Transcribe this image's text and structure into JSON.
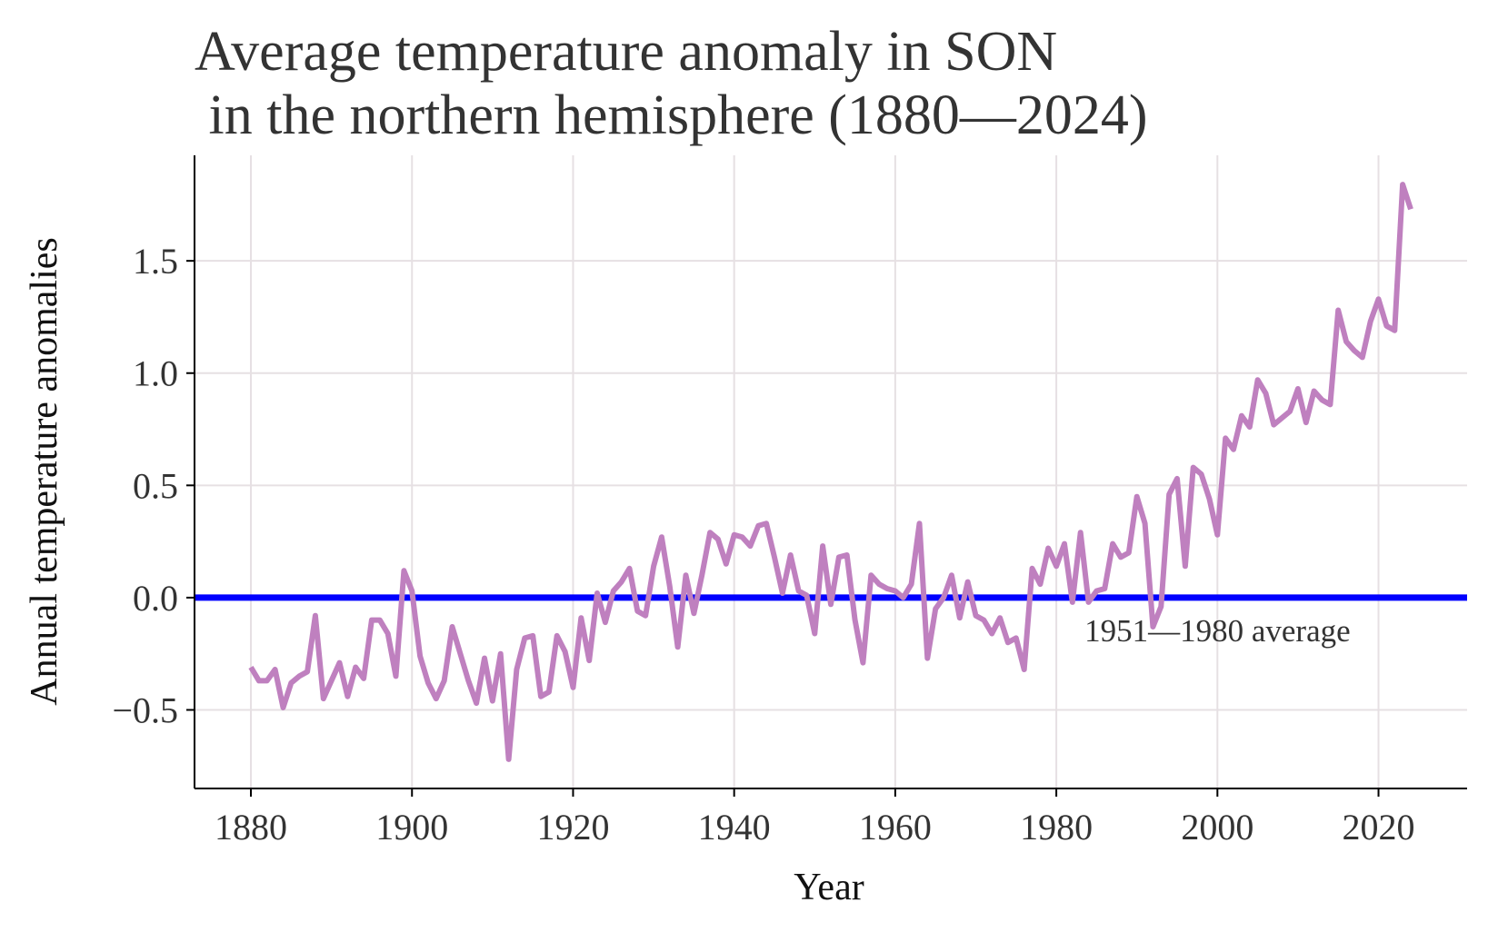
{
  "chart_data": {
    "type": "line",
    "title_line1": "Average temperature anomaly in SON",
    "title_line2": " in the northern hemisphere (1880—2024)",
    "xlabel": "Year",
    "ylabel": "Annual temperature anomalies",
    "xlim": [
      1873,
      2031
    ],
    "ylim": [
      -0.85,
      1.97
    ],
    "xticks": [
      1880,
      1900,
      1920,
      1940,
      1960,
      1980,
      2000,
      2020
    ],
    "xtick_labels": [
      "1880",
      "1900",
      "1920",
      "1940",
      "1960",
      "1980",
      "2000",
      "2020"
    ],
    "yticks": [
      -0.5,
      0.0,
      0.5,
      1.0,
      1.5
    ],
    "ytick_labels": [
      "−0.5",
      "0.0",
      "0.5",
      "1.0",
      "1.5"
    ],
    "grid": true,
    "series": [
      {
        "color": "#bf80bf",
        "x": [
          1880,
          1881,
          1882,
          1883,
          1884,
          1885,
          1886,
          1887,
          1888,
          1889,
          1890,
          1891,
          1892,
          1893,
          1894,
          1895,
          1896,
          1897,
          1898,
          1899,
          1900,
          1901,
          1902,
          1903,
          1904,
          1905,
          1906,
          1907,
          1908,
          1909,
          1910,
          1911,
          1912,
          1913,
          1914,
          1915,
          1916,
          1917,
          1918,
          1919,
          1920,
          1921,
          1922,
          1923,
          1924,
          1925,
          1926,
          1927,
          1928,
          1929,
          1930,
          1931,
          1932,
          1933,
          1934,
          1935,
          1936,
          1937,
          1938,
          1939,
          1940,
          1941,
          1942,
          1943,
          1944,
          1945,
          1946,
          1947,
          1948,
          1949,
          1950,
          1951,
          1952,
          1953,
          1954,
          1955,
          1956,
          1957,
          1958,
          1959,
          1960,
          1961,
          1962,
          1963,
          1964,
          1965,
          1966,
          1967,
          1968,
          1969,
          1970,
          1971,
          1972,
          1973,
          1974,
          1975,
          1976,
          1977,
          1978,
          1979,
          1980,
          1981,
          1982,
          1983,
          1984,
          1985,
          1986,
          1987,
          1988,
          1989,
          1990,
          1991,
          1992,
          1993,
          1994,
          1995,
          1996,
          1997,
          1998,
          1999,
          2000,
          2001,
          2002,
          2003,
          2004,
          2005,
          2006,
          2007,
          2008,
          2009,
          2010,
          2011,
          2012,
          2013,
          2014,
          2015,
          2016,
          2017,
          2018,
          2019,
          2020,
          2021,
          2022,
          2023,
          2024
        ],
        "y": [
          -0.31,
          -0.37,
          -0.37,
          -0.32,
          -0.49,
          -0.38,
          -0.35,
          -0.33,
          -0.08,
          -0.45,
          -0.37,
          -0.29,
          -0.44,
          -0.31,
          -0.36,
          -0.1,
          -0.1,
          -0.16,
          -0.35,
          0.12,
          0.03,
          -0.26,
          -0.38,
          -0.45,
          -0.37,
          -0.13,
          -0.25,
          -0.37,
          -0.47,
          -0.27,
          -0.46,
          -0.25,
          -0.72,
          -0.32,
          -0.18,
          -0.17,
          -0.44,
          -0.42,
          -0.17,
          -0.24,
          -0.4,
          -0.09,
          -0.28,
          0.02,
          -0.11,
          0.03,
          0.07,
          0.13,
          -0.06,
          -0.08,
          0.14,
          0.27,
          0.05,
          -0.22,
          0.1,
          -0.07,
          0.1,
          0.29,
          0.26,
          0.15,
          0.28,
          0.27,
          0.23,
          0.32,
          0.33,
          0.18,
          0.02,
          0.19,
          0.03,
          0.01,
          -0.16,
          0.23,
          -0.03,
          0.18,
          0.19,
          -0.1,
          -0.29,
          0.1,
          0.06,
          0.04,
          0.03,
          0.0,
          0.06,
          0.33,
          -0.27,
          -0.05,
          0.0,
          0.1,
          -0.09,
          0.07,
          -0.08,
          -0.1,
          -0.16,
          -0.09,
          -0.2,
          -0.18,
          -0.32,
          0.13,
          0.06,
          0.22,
          0.14,
          0.24,
          -0.02,
          0.29,
          -0.02,
          0.03,
          0.04,
          0.24,
          0.18,
          0.2,
          0.45,
          0.33,
          -0.13,
          -0.04,
          0.46,
          0.53,
          0.14,
          0.58,
          0.55,
          0.44,
          0.28,
          0.71,
          0.66,
          0.81,
          0.76,
          0.97,
          0.91,
          0.77,
          0.8,
          0.83,
          0.93,
          0.78,
          0.92,
          0.88,
          0.86,
          1.28,
          1.14,
          1.1,
          1.07,
          1.23,
          1.33,
          1.21,
          1.19,
          1.84,
          1.73
        ]
      }
    ],
    "reference_line": {
      "y": 0.0,
      "color": "#0000ff",
      "label": "1951—1980 average",
      "label_x": 1983.5
    },
    "colors": {
      "grid": "#e6e0e3",
      "axis": "#000000",
      "series": "#bf80bf",
      "reference": "#0000ff"
    }
  }
}
